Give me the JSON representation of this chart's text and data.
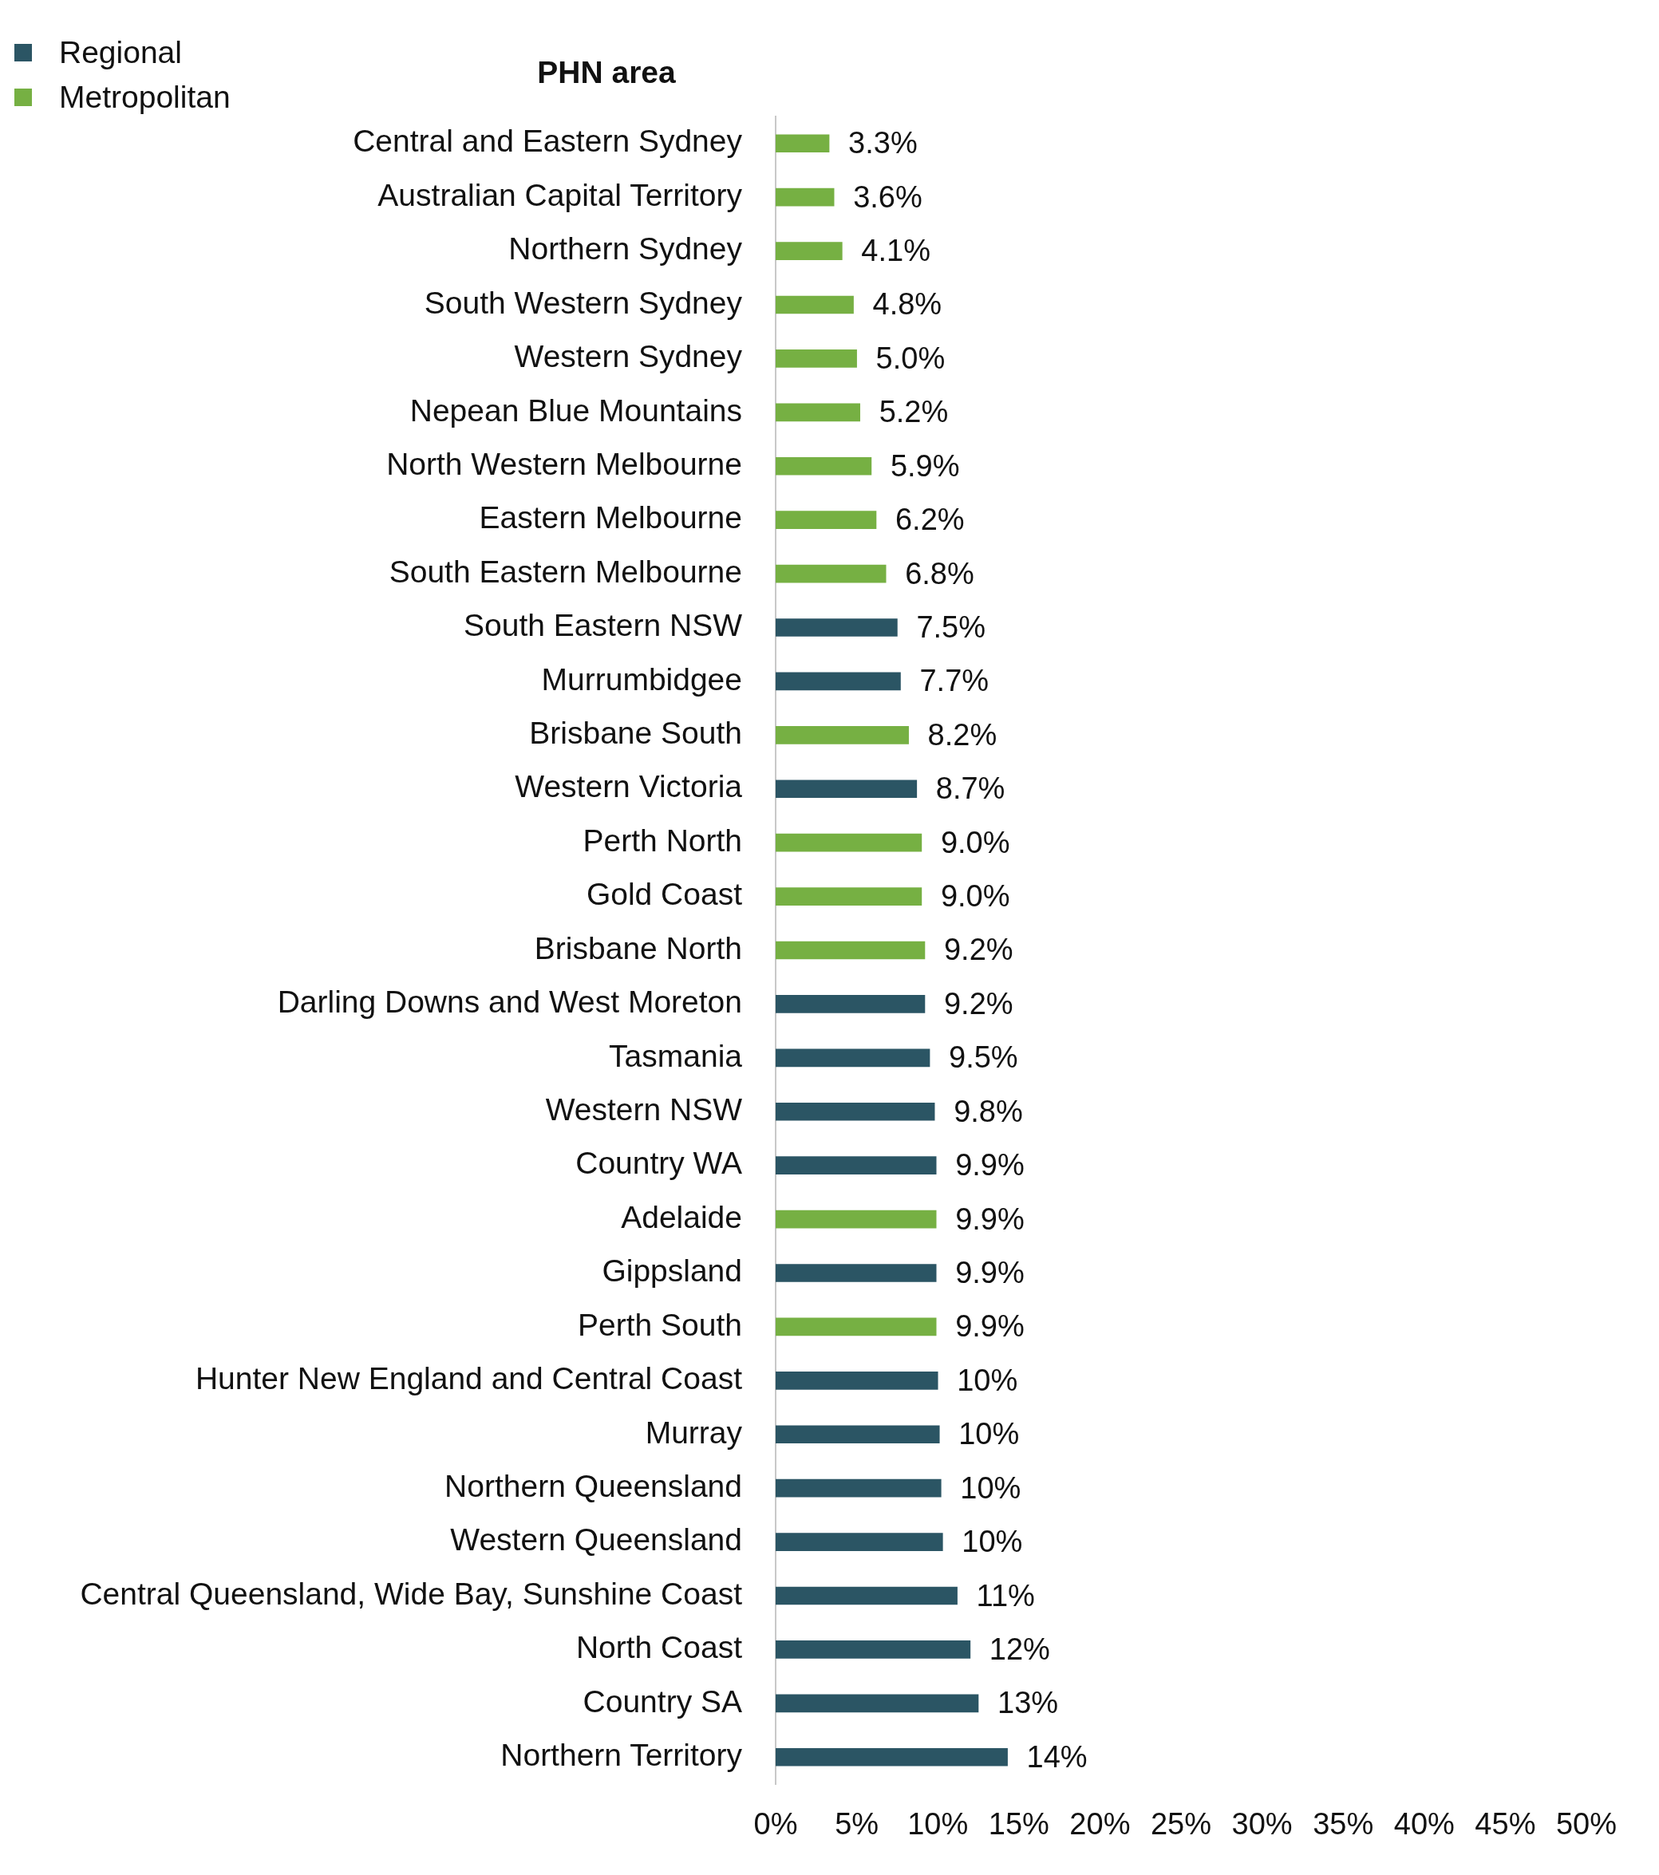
{
  "chart_data": {
    "type": "bar",
    "orientation": "horizontal",
    "ylabel": "PHN area",
    "categories": [
      "Central and Eastern Sydney",
      "Australian Capital Territory",
      "Northern Sydney",
      "South Western Sydney",
      "Western Sydney",
      "Nepean Blue Mountains",
      "North Western Melbourne",
      "Eastern Melbourne",
      "South Eastern Melbourne",
      "South Eastern NSW",
      "Murrumbidgee",
      "Brisbane South",
      "Western Victoria",
      "Perth North",
      "Gold Coast",
      "Brisbane North",
      "Darling Downs and West Moreton",
      "Tasmania",
      "Western NSW",
      "Country WA",
      "Adelaide",
      "Gippsland",
      "Perth South",
      "Hunter New England and Central Coast",
      "Murray",
      "Northern Queensland",
      "Western Queensland",
      "Central Queensland, Wide Bay, Sunshine Coast",
      "North Coast",
      "Country SA",
      "Northern Territory"
    ],
    "series": [
      {
        "name": "Regional",
        "color": "#2b5564",
        "values": [
          null,
          null,
          null,
          null,
          null,
          null,
          null,
          null,
          null,
          7.5,
          7.7,
          null,
          8.7,
          null,
          null,
          null,
          9.2,
          9.5,
          9.8,
          9.9,
          null,
          9.9,
          null,
          10.0,
          10.1,
          10.2,
          10.3,
          11.2,
          12.0,
          12.5,
          14.3
        ],
        "value_labels": [
          null,
          null,
          null,
          null,
          null,
          null,
          null,
          null,
          null,
          "7.5%",
          "7.7%",
          null,
          "8.7%",
          null,
          null,
          null,
          "9.2%",
          "9.5%",
          "9.8%",
          "9.9%",
          null,
          "9.9%",
          null,
          "10%",
          "10%",
          "10%",
          "10%",
          "11%",
          "12%",
          "13%",
          "14%"
        ]
      },
      {
        "name": "Metropolitan",
        "color": "#76b043",
        "values": [
          3.3,
          3.6,
          4.1,
          4.8,
          5.0,
          5.2,
          5.9,
          6.2,
          6.8,
          null,
          null,
          8.2,
          null,
          9.0,
          9.0,
          9.2,
          null,
          null,
          null,
          null,
          9.9,
          null,
          9.9,
          null,
          null,
          null,
          null,
          null,
          null,
          null,
          null
        ],
        "value_labels": [
          "3.3%",
          "3.6%",
          "4.1%",
          "4.8%",
          "5.0%",
          "5.2%",
          "5.9%",
          "6.2%",
          "6.8%",
          null,
          null,
          "8.2%",
          null,
          "9.0%",
          "9.0%",
          "9.2%",
          null,
          null,
          null,
          null,
          "9.9%",
          null,
          "9.9%",
          null,
          null,
          null,
          null,
          null,
          null,
          null,
          null
        ]
      }
    ],
    "xlim": [
      0,
      50
    ],
    "xticks": [
      {
        "value": 0,
        "label": "0%"
      },
      {
        "value": 5,
        "label": "5%"
      },
      {
        "value": 10,
        "label": "10%"
      },
      {
        "value": 15,
        "label": "15%"
      },
      {
        "value": 20,
        "label": "20%"
      },
      {
        "value": 25,
        "label": "25%"
      },
      {
        "value": 30,
        "label": "30%"
      },
      {
        "value": 35,
        "label": "35%"
      },
      {
        "value": 40,
        "label": "40%"
      },
      {
        "value": 45,
        "label": "45%"
      },
      {
        "value": 50,
        "label": "50%"
      }
    ],
    "grid": false,
    "legend": "top left"
  }
}
